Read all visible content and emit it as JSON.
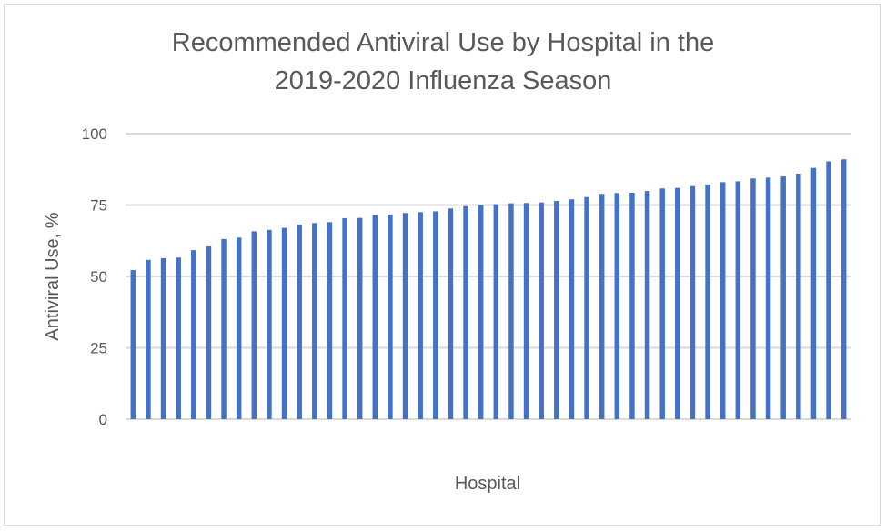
{
  "chart_data": {
    "type": "bar",
    "title_lines": [
      "Recommended Antiviral Use by Hospital in the",
      "2019-2020 Influenza Season"
    ],
    "xlabel": "Hospital",
    "ylabel": "Antiviral Use, %",
    "ylim": [
      0,
      100
    ],
    "yticks": [
      "0",
      "25",
      "50",
      "75",
      "100"
    ],
    "grid": true,
    "bar_color": "#4472c4",
    "gridline_color": "#d9d9d9",
    "values": [
      52.2,
      55.8,
      56.4,
      56.6,
      59.2,
      60.5,
      63.1,
      63.6,
      65.8,
      66.3,
      67.0,
      68.2,
      68.7,
      69.0,
      70.4,
      70.5,
      71.5,
      71.7,
      72.2,
      72.5,
      72.8,
      73.8,
      74.6,
      75.0,
      75.3,
      75.6,
      75.7,
      75.9,
      76.4,
      77.0,
      77.8,
      78.9,
      79.2,
      79.3,
      79.9,
      80.8,
      81.0,
      81.6,
      82.2,
      83.0,
      83.3,
      84.3,
      84.6,
      85.0,
      86.0,
      88.0,
      90.3,
      91.0
    ]
  }
}
